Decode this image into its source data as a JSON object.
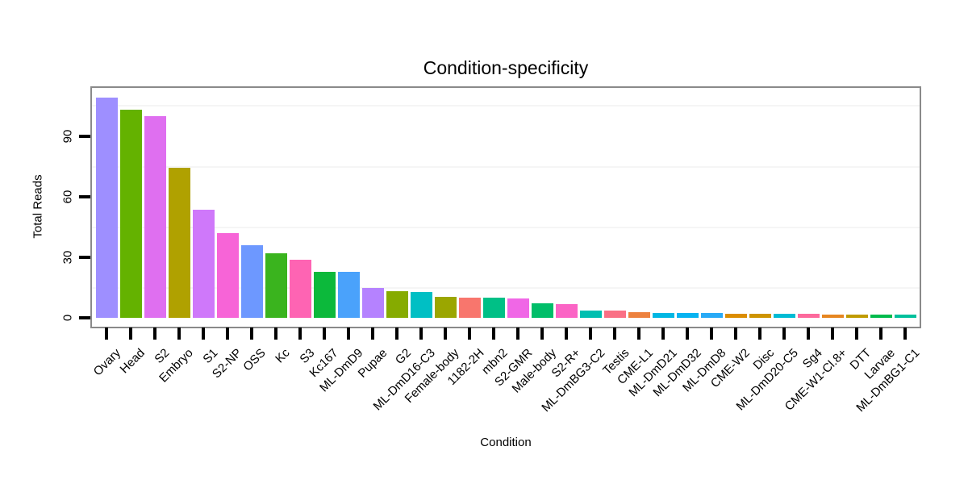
{
  "chart_data": {
    "type": "bar",
    "title": "Condition-specificity",
    "xlabel": "Condition",
    "ylabel": "Total Reads",
    "ylim": [
      0,
      114
    ],
    "yticks": [
      0,
      30,
      60,
      90
    ],
    "minor_gridlines": [
      15,
      45,
      75,
      105
    ],
    "grid": "minor-horizontal-only",
    "legend": "none",
    "categories": [
      "Ovary",
      "Head",
      "S2",
      "Embryo",
      "S1",
      "S2-NP",
      "OSS",
      "Kc",
      "S3",
      "Kc167",
      "ML-DmD9",
      "Pupae",
      "G2",
      "ML-DmD16-C3",
      "Female-body",
      "1182-2H",
      "mbn2",
      "S2-GMR",
      "Male-body",
      "S2-R+",
      "ML-DmBG3-C2",
      "Testis",
      "CME-L1",
      "ML-DmD21",
      "ML-DmD32",
      "ML-DmD8",
      "CME-W2",
      "Disc",
      "ML-DmD20-C5",
      "Sg4",
      "CME-W1-Cl.8+",
      "DTT",
      "Larvae",
      "ML-DmBG1-C1"
    ],
    "values": [
      109,
      103,
      100,
      74.5,
      53.5,
      42,
      36,
      32,
      29,
      23,
      23,
      15,
      13.5,
      13,
      10.5,
      10,
      10,
      9.8,
      7.2,
      7,
      3.9,
      3.8,
      2.8,
      2.5,
      2.5,
      2.5,
      2,
      2,
      2,
      2,
      1.6,
      1.6,
      1.6,
      1.6
    ],
    "bar_colors": [
      "#9E8FFF",
      "#64B200",
      "#DF6FF0",
      "#B0A100",
      "#CF78FA",
      "#F764D7",
      "#6D98FF",
      "#3AB41E",
      "#FE64B3",
      "#0CB93B",
      "#4AA2FB",
      "#B582FF",
      "#86AB00",
      "#00BFC4",
      "#9BA600",
      "#F8766D",
      "#00C086",
      "#F067E6",
      "#00BE69",
      "#FB64C5",
      "#00BFB0",
      "#FA7085",
      "#ED813E",
      "#00B7E3",
      "#06B3F1",
      "#28AAF6",
      "#DC8D00",
      "#CE9400",
      "#00BBD4",
      "#FD699C",
      "#E68620",
      "#C09B00",
      "#00BB4C",
      "#00C09C"
    ],
    "colors_meta": {
      "panel_border": "#8a8a8a",
      "minor_grid": "#f5f5f5",
      "axis_tick": "#000000",
      "text": "#000000"
    }
  }
}
